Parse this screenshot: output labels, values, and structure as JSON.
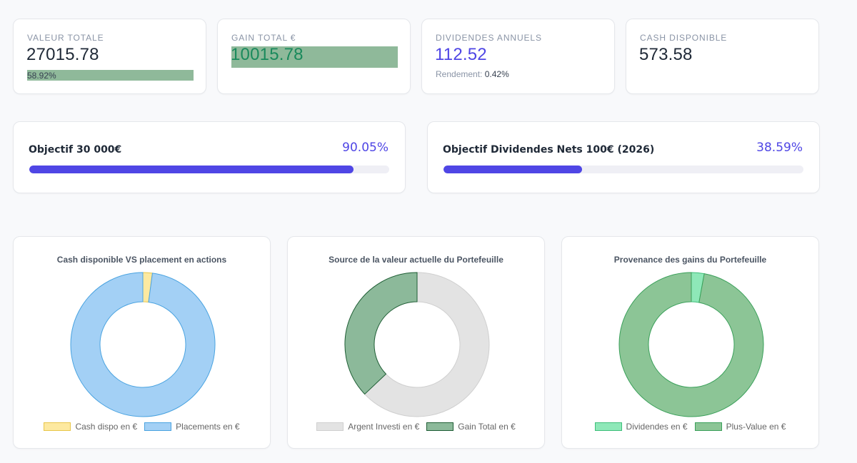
{
  "stats": [
    {
      "label": "VALEUR TOTALE",
      "value": "27015.78",
      "sub": "58.92%"
    },
    {
      "label": "GAIN TOTAL €",
      "value": "10015.78"
    },
    {
      "label": "DIVIDENDES ANNUELS",
      "value": "112.52",
      "sub_label": "Rendement:",
      "sub_value": "0.42%"
    },
    {
      "label": "CASH DISPONIBLE",
      "value": "573.58"
    }
  ],
  "goals": [
    {
      "title": "Objectif 30 000€",
      "pct_text": "90.05%",
      "pct": 90.05
    },
    {
      "title": "Objectif Dividendes Nets 100€ (2026)",
      "pct_text": "38.59%",
      "pct": 38.59
    }
  ],
  "charts": [
    {
      "title": "Cash disponible VS placement en actions",
      "legend": [
        "Cash dispo en €",
        "Placements en €"
      ],
      "values": [
        573.58,
        26442.2
      ],
      "colors": [
        "#fde9a0",
        "#a3d0f5"
      ],
      "borders": [
        "#e8c64a",
        "#4aa3e0"
      ]
    },
    {
      "title": "Source de la valeur actuelle du Portefeuille",
      "legend": [
        "Argent Investi en €",
        "Gain Total en €"
      ],
      "values": [
        17000,
        10015.78
      ],
      "colors": [
        "#e3e3e3",
        "#8cb99a"
      ],
      "borders": [
        "#cfcfcf",
        "#1f5e35"
      ]
    },
    {
      "title": "Provenance des gains du Portefeuille",
      "legend": [
        "Dividendes en €",
        "Plus-Value en €"
      ],
      "values": [
        112.52,
        3800
      ],
      "colors": [
        "#8ee8b8",
        "#8cc596"
      ],
      "borders": [
        "#3fbf7a",
        "#3aa05a"
      ]
    }
  ],
  "chart_data": [
    {
      "type": "pie",
      "title": "Cash disponible VS placement en actions",
      "categories": [
        "Cash dispo en €",
        "Placements en €"
      ],
      "values": [
        573.58,
        26442.2
      ],
      "legend": "bottom"
    },
    {
      "type": "pie",
      "title": "Source de la valeur actuelle du Portefeuille",
      "categories": [
        "Argent Investi en €",
        "Gain Total en €"
      ],
      "values": [
        17000,
        10015.78
      ],
      "legend": "bottom"
    },
    {
      "type": "pie",
      "title": "Provenance des gains du Portefeuille",
      "categories": [
        "Dividendes en €",
        "Plus-Value en €"
      ],
      "values": [
        112.52,
        3800
      ],
      "legend": "bottom"
    }
  ]
}
